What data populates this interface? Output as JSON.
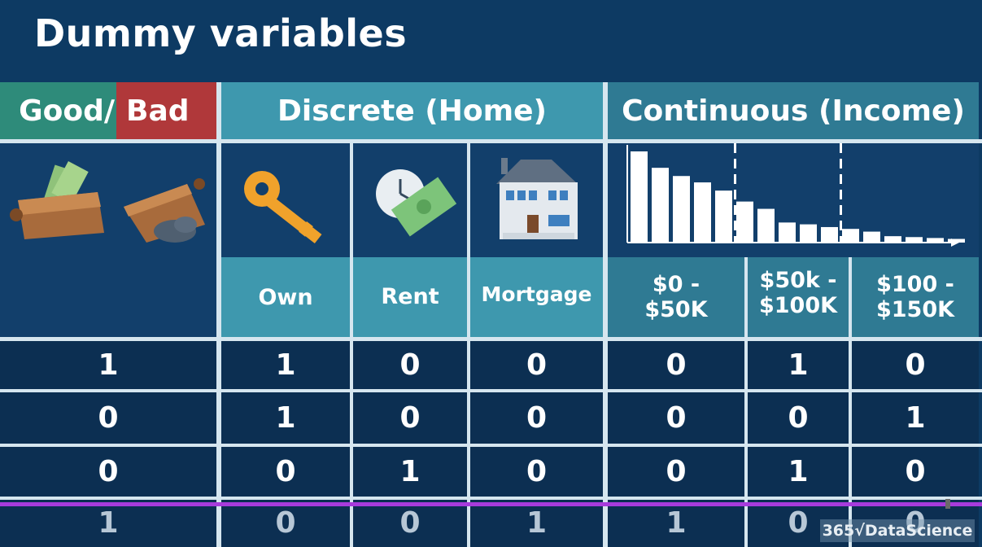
{
  "title": "Dummy variables",
  "headers": {
    "good": "Good/",
    "bad": "Bad",
    "discrete": "Discrete (Home)",
    "continuous": "Continuous (Income)"
  },
  "subheaders": {
    "own": "Own",
    "rent": "Rent",
    "mortgage": "Mortgage",
    "inc1_a": "$0 -",
    "inc1_b": "$50K",
    "inc2_a": "$50k -",
    "inc2_b": "$100K",
    "inc3_a": "$100 -",
    "inc3_b": "$150K"
  },
  "rows": [
    [
      "1",
      "1",
      "0",
      "0",
      "0",
      "1",
      "0"
    ],
    [
      "0",
      "1",
      "0",
      "0",
      "0",
      "0",
      "1"
    ],
    [
      "0",
      "0",
      "1",
      "0",
      "0",
      "1",
      "0"
    ],
    [
      "1",
      "0",
      "0",
      "1",
      "1",
      "0",
      "0"
    ]
  ],
  "histogram": {
    "values": [
      100,
      82,
      73,
      66,
      57,
      45,
      37,
      22,
      20,
      17,
      15,
      12,
      7,
      6,
      5,
      4
    ],
    "dividers_after": [
      5,
      10
    ]
  },
  "watermark": "365√DataScience",
  "colors": {
    "good": "#2e8b7a",
    "bad": "#b0383a",
    "discrete_header": "#3e98ae",
    "continuous_header": "#2f7a93",
    "playbar": "#a73bdc"
  }
}
